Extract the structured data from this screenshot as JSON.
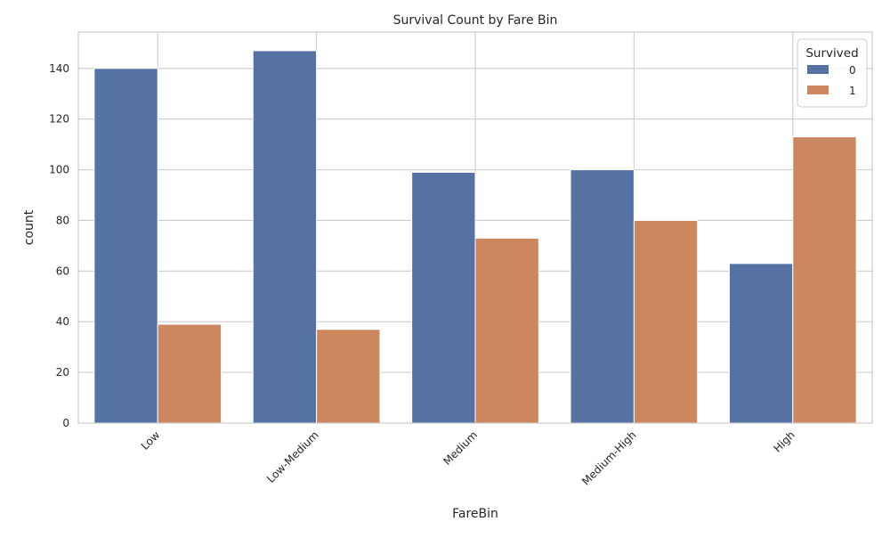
{
  "chart_data": {
    "type": "bar",
    "title": "Survival Count by Fare Bin",
    "xlabel": "FareBin",
    "ylabel": "count",
    "categories": [
      "Low",
      "Low-Medium",
      "Medium",
      "Medium-High",
      "High"
    ],
    "series": [
      {
        "name": "0",
        "values": [
          140,
          147,
          99,
          100,
          63
        ],
        "color": "#5572a4"
      },
      {
        "name": "1",
        "values": [
          39,
          37,
          73,
          80,
          113
        ],
        "color": "#cc875f"
      }
    ],
    "ylim": [
      0,
      154.35
    ],
    "yticks": [
      0,
      20,
      40,
      60,
      80,
      100,
      120,
      140
    ],
    "grid": true,
    "legend": {
      "title": "Survived",
      "placement": "top-right"
    }
  }
}
